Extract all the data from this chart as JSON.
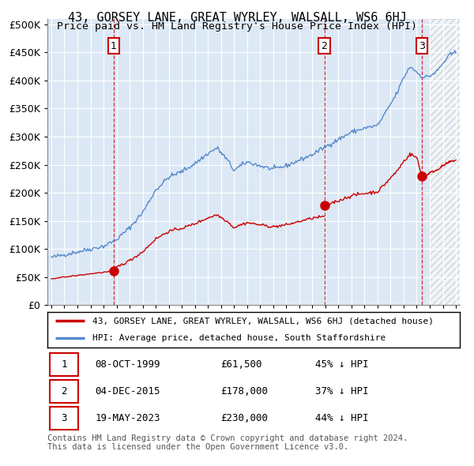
{
  "title": "43, GORSEY LANE, GREAT WYRLEY, WALSALL, WS6 6HJ",
  "subtitle": "Price paid vs. HM Land Registry's House Price Index (HPI)",
  "ytick_values": [
    0,
    50000,
    100000,
    150000,
    200000,
    250000,
    300000,
    350000,
    400000,
    450000,
    500000
  ],
  "ylim": [
    0,
    510000
  ],
  "xlim_start": 1994.7,
  "xlim_end": 2026.3,
  "hpi_color": "#5588cc",
  "price_color": "#cc0000",
  "background_color": "#dce8f5",
  "grid_color": "#ffffff",
  "hatch_color": "#cccccc",
  "purchases": [
    {
      "date_num": 1999.77,
      "price": 61500,
      "label": "1",
      "display_date": "08-OCT-1999",
      "display_price": "£61,500",
      "pct": "45% ↓ HPI"
    },
    {
      "date_num": 2015.92,
      "price": 178000,
      "label": "2",
      "display_date": "04-DEC-2015",
      "display_price": "£178,000",
      "pct": "37% ↓ HPI"
    },
    {
      "date_num": 2023.38,
      "price": 230000,
      "label": "3",
      "display_date": "19-MAY-2023",
      "display_price": "£230,000",
      "pct": "44% ↓ HPI"
    }
  ],
  "legend_line1": "43, GORSEY LANE, GREAT WYRLEY, WALSALL, WS6 6HJ (detached house)",
  "legend_line2": "HPI: Average price, detached house, South Staffordshire",
  "footnote": "Contains HM Land Registry data © Crown copyright and database right 2024.\nThis data is licensed under the Open Government Licence v3.0.",
  "hpi_anchors": [
    [
      1995.0,
      85000
    ],
    [
      1996.0,
      90000
    ],
    [
      1997.0,
      95000
    ],
    [
      1998.0,
      100000
    ],
    [
      1999.0,
      105000
    ],
    [
      2000.0,
      117000
    ],
    [
      2001.0,
      138000
    ],
    [
      2002.0,
      165000
    ],
    [
      2003.0,
      205000
    ],
    [
      2004.0,
      228000
    ],
    [
      2005.0,
      238000
    ],
    [
      2006.0,
      252000
    ],
    [
      2007.0,
      270000
    ],
    [
      2007.7,
      280000
    ],
    [
      2008.5,
      258000
    ],
    [
      2009.0,
      240000
    ],
    [
      2009.5,
      248000
    ],
    [
      2010.0,
      255000
    ],
    [
      2011.0,
      248000
    ],
    [
      2012.0,
      242000
    ],
    [
      2013.0,
      248000
    ],
    [
      2014.0,
      258000
    ],
    [
      2015.0,
      268000
    ],
    [
      2016.0,
      282000
    ],
    [
      2017.0,
      295000
    ],
    [
      2018.0,
      308000
    ],
    [
      2019.0,
      315000
    ],
    [
      2020.0,
      320000
    ],
    [
      2020.5,
      338000
    ],
    [
      2021.0,
      358000
    ],
    [
      2021.5,
      378000
    ],
    [
      2022.0,
      405000
    ],
    [
      2022.5,
      425000
    ],
    [
      2023.0,
      415000
    ],
    [
      2023.5,
      405000
    ],
    [
      2024.0,
      408000
    ],
    [
      2024.5,
      415000
    ],
    [
      2025.0,
      430000
    ],
    [
      2025.5,
      445000
    ],
    [
      2026.0,
      450000
    ]
  ],
  "price_anchors_p1": [
    [
      1995.0,
      47500
    ],
    [
      1996.0,
      50000
    ],
    [
      1997.0,
      53000
    ],
    [
      1998.0,
      56000
    ],
    [
      1999.5,
      60000
    ],
    [
      1999.77,
      61500
    ]
  ],
  "price_anchors_p2": [
    [
      1999.77,
      61500
    ],
    [
      2000.0,
      67500
    ],
    [
      2001.0,
      79500
    ],
    [
      2002.0,
      95000
    ],
    [
      2003.0,
      118000
    ],
    [
      2004.0,
      131500
    ],
    [
      2005.0,
      137000
    ],
    [
      2006.0,
      145000
    ],
    [
      2007.0,
      155500
    ],
    [
      2007.7,
      161000
    ],
    [
      2008.5,
      149000
    ],
    [
      2009.0,
      138000
    ],
    [
      2009.5,
      143000
    ],
    [
      2010.0,
      147000
    ],
    [
      2011.0,
      143000
    ],
    [
      2012.0,
      139500
    ],
    [
      2013.0,
      143000
    ],
    [
      2014.0,
      149000
    ],
    [
      2015.0,
      155000
    ],
    [
      2015.92,
      158000
    ]
  ],
  "price_anchors_p3": [
    [
      2015.92,
      178000
    ],
    [
      2016.0,
      178500
    ],
    [
      2017.0,
      186000
    ],
    [
      2018.0,
      195000
    ],
    [
      2019.0,
      199000
    ],
    [
      2020.0,
      202000
    ],
    [
      2020.5,
      214000
    ],
    [
      2021.0,
      226500
    ],
    [
      2021.5,
      239000
    ],
    [
      2022.0,
      256000
    ],
    [
      2022.5,
      269000
    ],
    [
      2023.0,
      263000
    ],
    [
      2023.38,
      230000
    ]
  ],
  "price_anchors_p4": [
    [
      2023.38,
      230000
    ],
    [
      2023.5,
      226000
    ],
    [
      2024.0,
      236000
    ],
    [
      2024.5,
      240000
    ],
    [
      2025.0,
      248000
    ],
    [
      2025.5,
      255000
    ],
    [
      2026.0,
      258000
    ]
  ]
}
